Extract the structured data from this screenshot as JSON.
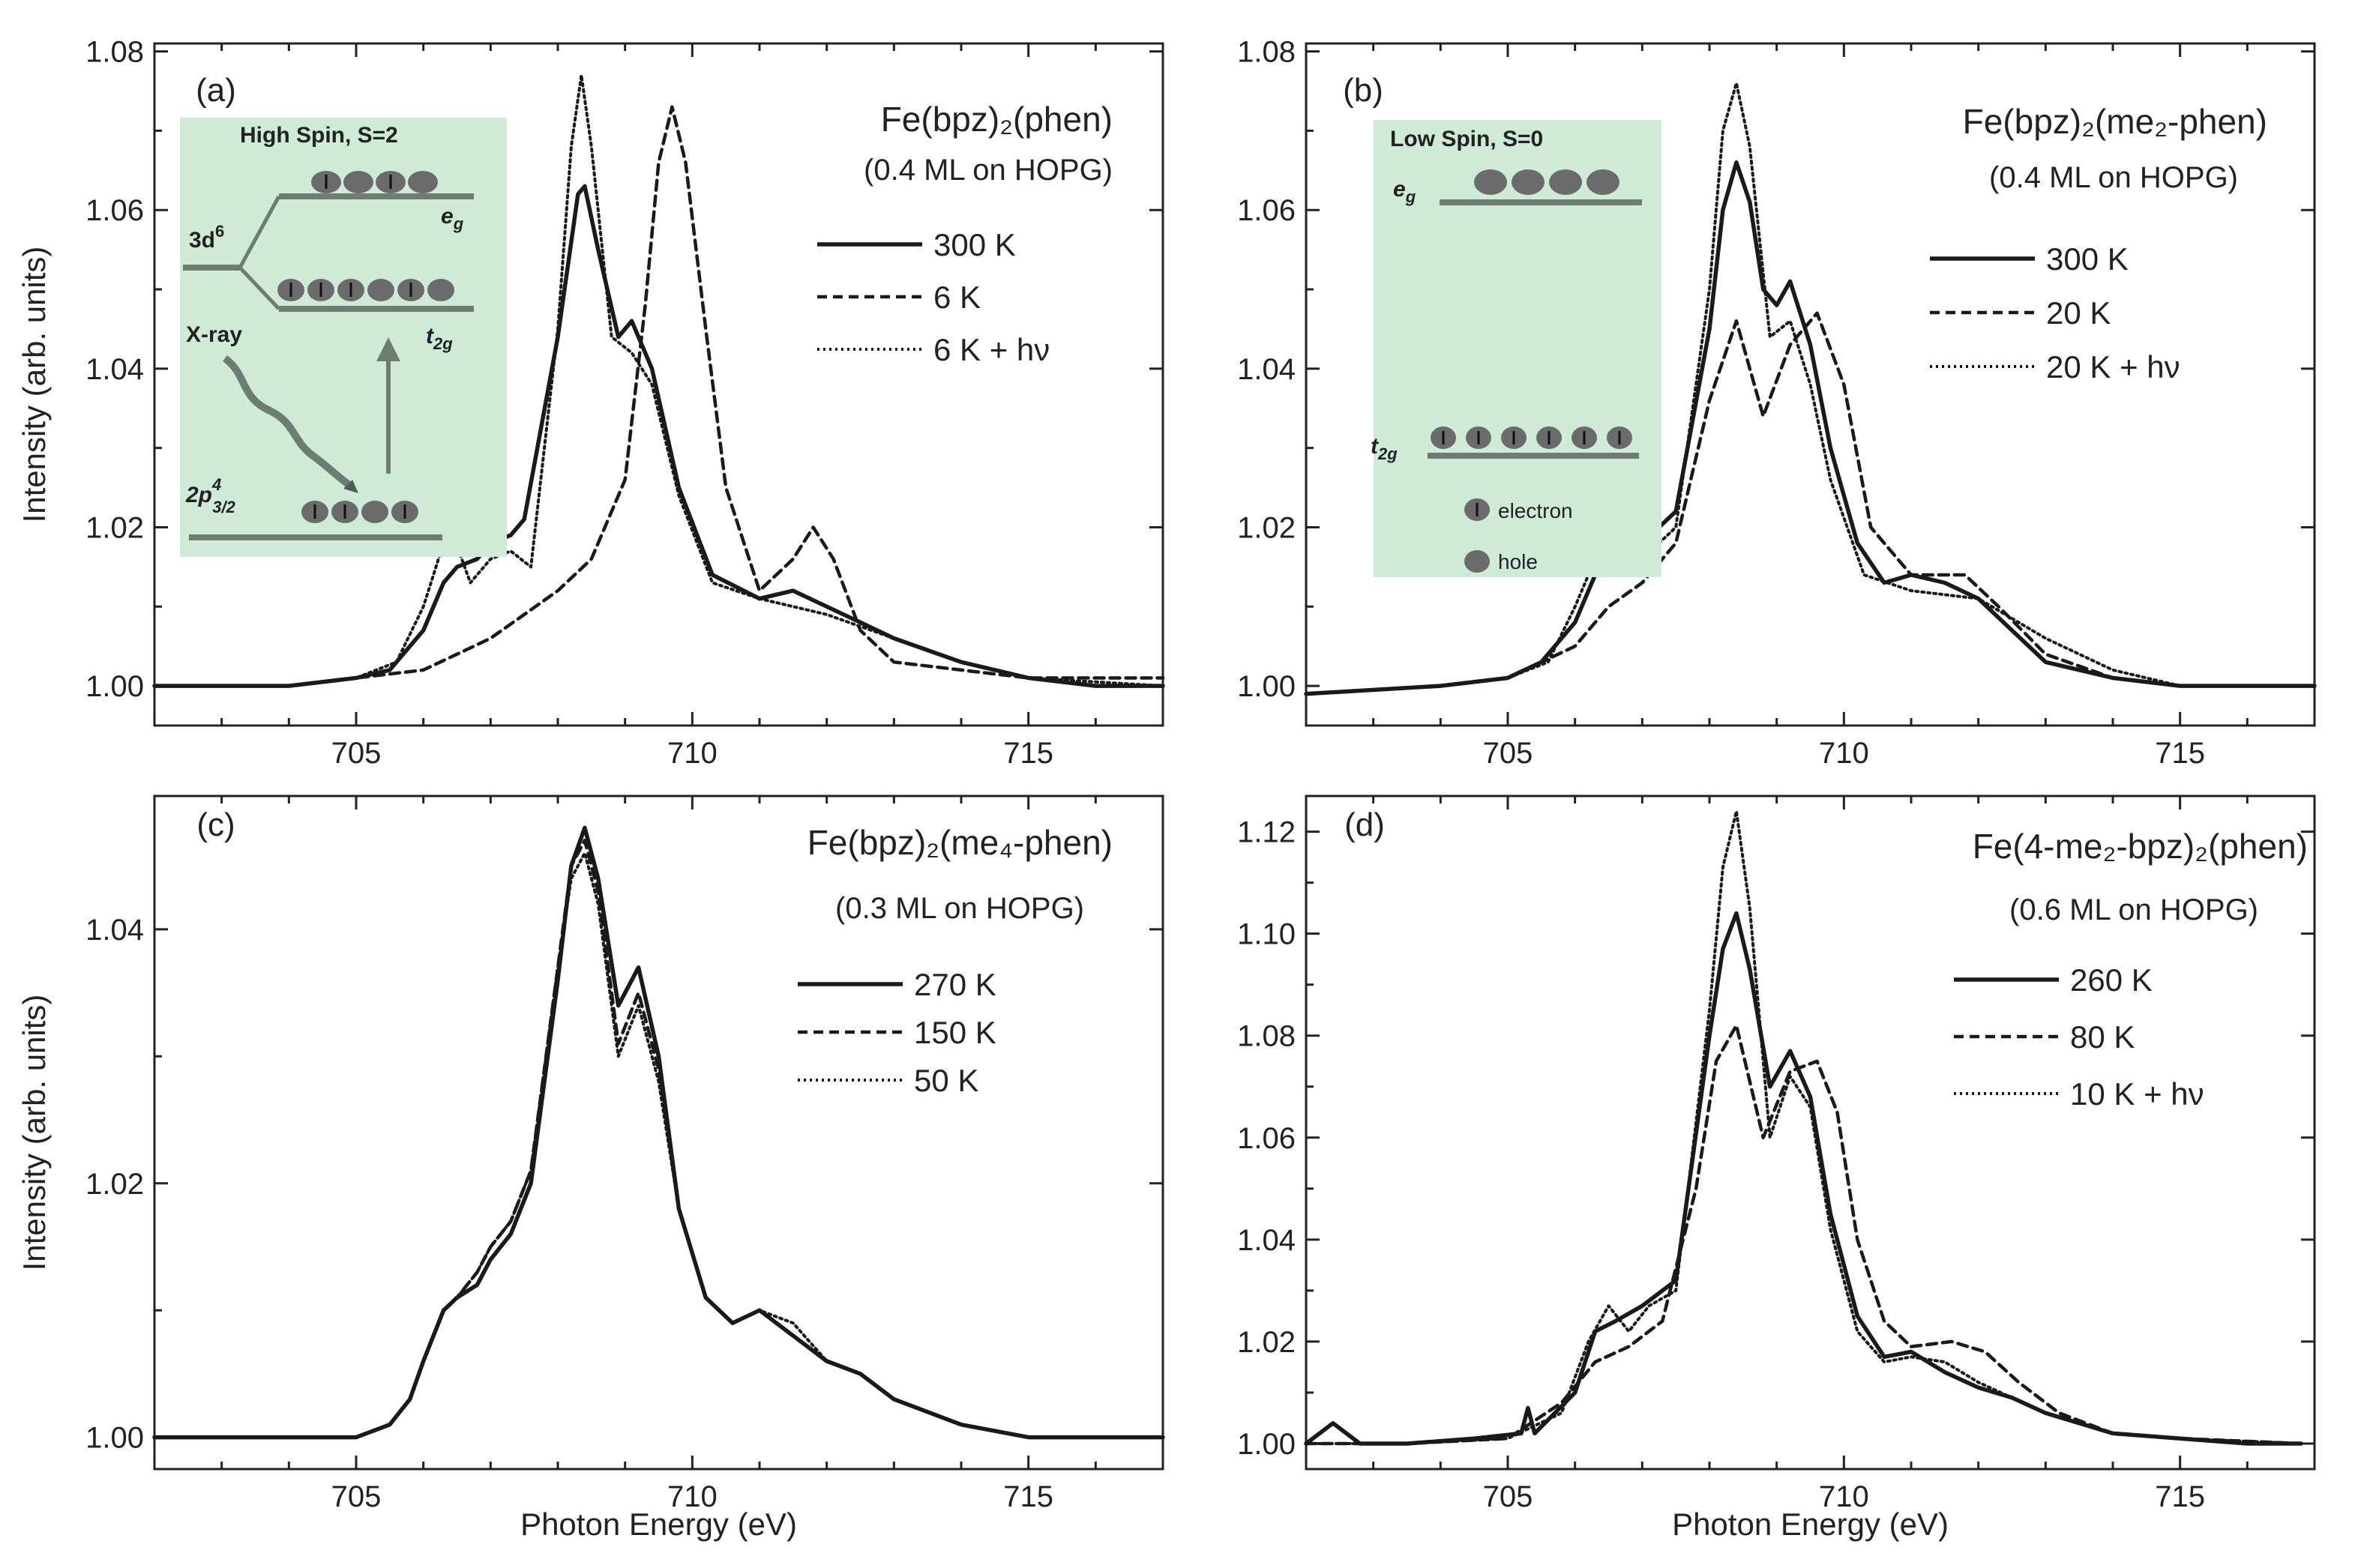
{
  "xlabel": "Photon Energy (eV)",
  "ylabel": "Intensity (arb. units)",
  "chart_data": [
    {
      "type": "line",
      "panel": "(a)",
      "title": "Fe(bpz)₂(phen)",
      "subtitle": "(0.4 ML on  HOPG)",
      "xlim": [
        702,
        717
      ],
      "ylim": [
        0.995,
        1.081
      ],
      "xticks": [
        705,
        710,
        715
      ],
      "yticks": [
        "1.00",
        "1.02",
        "1.04",
        "1.06",
        "1.08"
      ],
      "legend_position": "top-right",
      "series": [
        {
          "name": "300 K",
          "style": "solid",
          "x": [
            702,
            703,
            704,
            705,
            705.5,
            706,
            706.3,
            706.5,
            706.8,
            707,
            707.3,
            707.5,
            708,
            708.3,
            708.4,
            708.6,
            708.9,
            709.1,
            709.4,
            709.8,
            710.3,
            711,
            711.5,
            712,
            712.5,
            713,
            714,
            715,
            716,
            717
          ],
          "y": [
            1.0,
            1.0,
            1.0,
            1.001,
            1.002,
            1.007,
            1.013,
            1.015,
            1.016,
            1.018,
            1.019,
            1.021,
            1.044,
            1.062,
            1.063,
            1.055,
            1.044,
            1.046,
            1.04,
            1.025,
            1.014,
            1.011,
            1.012,
            1.01,
            1.008,
            1.006,
            1.003,
            1.001,
            1.0,
            1.0
          ]
        },
        {
          "name": "6 K",
          "style": "dashed",
          "x": [
            702,
            704,
            705,
            706,
            706.5,
            707,
            707.5,
            708,
            708.5,
            709,
            709.3,
            709.5,
            709.7,
            709.9,
            710.2,
            710.5,
            711,
            711.5,
            711.8,
            712.1,
            712.5,
            713,
            714,
            715,
            717
          ],
          "y": [
            1.0,
            1.0,
            1.001,
            1.002,
            1.004,
            1.006,
            1.009,
            1.012,
            1.016,
            1.026,
            1.048,
            1.066,
            1.073,
            1.066,
            1.045,
            1.025,
            1.012,
            1.016,
            1.02,
            1.016,
            1.007,
            1.003,
            1.002,
            1.001,
            1.001
          ]
        },
        {
          "name": "6 K + hν",
          "style": "dotted",
          "x": [
            702,
            704,
            705,
            705.6,
            706,
            706.3,
            706.4,
            706.7,
            707,
            707.3,
            707.6,
            708,
            708.2,
            708.35,
            708.5,
            708.8,
            709.1,
            709.4,
            709.8,
            710.3,
            711,
            712,
            713,
            714,
            715,
            717
          ],
          "y": [
            1.0,
            1.0,
            1.001,
            1.003,
            1.01,
            1.018,
            1.02,
            1.013,
            1.016,
            1.017,
            1.015,
            1.045,
            1.068,
            1.077,
            1.068,
            1.044,
            1.042,
            1.038,
            1.024,
            1.013,
            1.011,
            1.009,
            1.006,
            1.003,
            1.001,
            1.0
          ]
        }
      ]
    },
    {
      "type": "line",
      "panel": "(b)",
      "title": "Fe(bpz)₂(me₂-phen)",
      "subtitle": "(0.4 ML on HOPG)",
      "xlim": [
        702,
        717
      ],
      "ylim": [
        0.995,
        1.081
      ],
      "xticks": [
        705,
        710,
        715
      ],
      "yticks": [
        "1.00",
        "1.02",
        "1.04",
        "1.06",
        "1.08"
      ],
      "legend_position": "top-right",
      "series": [
        {
          "name": "300 K",
          "style": "solid",
          "x": [
            702,
            704,
            705,
            705.5,
            706,
            706.3,
            706.6,
            707,
            707.5,
            708,
            708.2,
            708.4,
            708.6,
            708.8,
            709,
            709.2,
            709.5,
            709.8,
            710.2,
            710.6,
            711,
            711.5,
            712,
            712.5,
            713,
            714,
            715,
            717
          ],
          "y": [
            0.999,
            1.0,
            1.001,
            1.003,
            1.008,
            1.014,
            1.016,
            1.018,
            1.022,
            1.045,
            1.06,
            1.066,
            1.061,
            1.05,
            1.048,
            1.051,
            1.043,
            1.03,
            1.018,
            1.013,
            1.014,
            1.013,
            1.011,
            1.007,
            1.003,
            1.001,
            1.0,
            1.0
          ]
        },
        {
          "name": "20 K",
          "style": "dashed",
          "x": [
            702,
            704,
            705,
            706,
            706.5,
            707,
            707.5,
            708,
            708.4,
            708.8,
            709.2,
            709.6,
            710,
            710.4,
            711,
            711.8,
            712.3,
            713,
            714,
            715,
            717
          ],
          "y": [
            0.999,
            1.0,
            1.001,
            1.005,
            1.01,
            1.013,
            1.018,
            1.036,
            1.046,
            1.034,
            1.043,
            1.047,
            1.038,
            1.02,
            1.014,
            1.014,
            1.01,
            1.004,
            1.001,
            1.0,
            1.0
          ]
        },
        {
          "name": "20 K + hν",
          "style": "dotted",
          "x": [
            702,
            704,
            705,
            705.6,
            706,
            706.3,
            706.6,
            707,
            707.5,
            708,
            708.2,
            708.4,
            708.6,
            708.9,
            709.2,
            709.5,
            709.8,
            710.3,
            711,
            712,
            713,
            714,
            715,
            717
          ],
          "y": [
            0.999,
            1.0,
            1.001,
            1.003,
            1.01,
            1.016,
            1.017,
            1.016,
            1.02,
            1.05,
            1.07,
            1.076,
            1.068,
            1.044,
            1.046,
            1.038,
            1.026,
            1.014,
            1.012,
            1.011,
            1.006,
            1.002,
            1.0,
            1.0
          ]
        }
      ]
    },
    {
      "type": "line",
      "panel": "(c)",
      "title": "Fe(bpz)₂(me₄-phen)",
      "subtitle": "(0.3 ML on HOPG)",
      "xlim": [
        702,
        717
      ],
      "ylim": [
        0.9975,
        1.0505
      ],
      "xticks": [
        705,
        710,
        715
      ],
      "yticks": [
        "1.00",
        "1.02",
        "1.04"
      ],
      "legend_position": "top-right",
      "series": [
        {
          "name": "270 K",
          "style": "solid",
          "x": [
            702,
            704,
            705,
            705.5,
            705.8,
            706,
            706.3,
            706.5,
            706.8,
            707,
            707.3,
            707.6,
            708,
            708.2,
            708.4,
            708.6,
            708.9,
            709.2,
            709.5,
            709.8,
            710.2,
            710.6,
            711,
            711.5,
            712,
            712.5,
            713,
            714,
            715,
            716,
            717
          ],
          "y": [
            1.0,
            1.0,
            1.0,
            1.001,
            1.003,
            1.006,
            1.01,
            1.011,
            1.012,
            1.014,
            1.016,
            1.02,
            1.036,
            1.045,
            1.048,
            1.044,
            1.034,
            1.037,
            1.03,
            1.018,
            1.011,
            1.009,
            1.01,
            1.008,
            1.006,
            1.005,
            1.003,
            1.001,
            1.0,
            1.0,
            1.0
          ]
        },
        {
          "name": "150 K",
          "style": "dashed",
          "x": [
            702,
            704,
            705,
            705.5,
            705.8,
            706,
            706.3,
            706.5,
            706.8,
            707,
            707.3,
            707.6,
            708,
            708.2,
            708.4,
            708.6,
            708.9,
            709.2,
            709.5,
            709.8,
            710.2,
            710.6,
            711,
            711.5,
            712,
            712.5,
            713,
            714,
            715,
            716,
            717
          ],
          "y": [
            1.0,
            1.0,
            1.0,
            1.001,
            1.003,
            1.006,
            1.01,
            1.011,
            1.013,
            1.015,
            1.017,
            1.021,
            1.037,
            1.045,
            1.047,
            1.043,
            1.031,
            1.035,
            1.029,
            1.018,
            1.011,
            1.009,
            1.01,
            1.008,
            1.006,
            1.005,
            1.003,
            1.001,
            1.0,
            1.0,
            1.0
          ]
        },
        {
          "name": "50 K",
          "style": "dotted",
          "x": [
            702,
            704,
            705,
            705.5,
            705.8,
            706,
            706.3,
            706.5,
            706.8,
            707,
            707.3,
            707.6,
            708,
            708.2,
            708.4,
            708.6,
            708.9,
            709.2,
            709.5,
            709.8,
            710.2,
            710.6,
            711,
            711.5,
            712,
            712.5,
            713,
            714,
            715,
            716,
            717
          ],
          "y": [
            1.0,
            1.0,
            1.0,
            1.001,
            1.003,
            1.006,
            1.01,
            1.011,
            1.013,
            1.015,
            1.017,
            1.021,
            1.037,
            1.044,
            1.046,
            1.042,
            1.03,
            1.034,
            1.028,
            1.018,
            1.011,
            1.009,
            1.01,
            1.009,
            1.006,
            1.005,
            1.003,
            1.001,
            1.0,
            1.0,
            1.0
          ]
        }
      ]
    },
    {
      "type": "line",
      "panel": "(d)",
      "title": "Fe(4-me₂-bpz)₂(phen)",
      "subtitle": "(0.6 ML on  HOPG)",
      "xlim": [
        702,
        717
      ],
      "ylim": [
        0.995,
        1.127
      ],
      "xticks": [
        705,
        710,
        715
      ],
      "yticks": [
        "1.00",
        "1.02",
        "1.04",
        "1.06",
        "1.08",
        "1.10",
        "1.12"
      ],
      "legend_position": "top-right",
      "series": [
        {
          "name": "260 K",
          "style": "solid",
          "x": [
            702,
            702.4,
            702.8,
            703.5,
            704.5,
            705.2,
            705.3,
            705.4,
            706,
            706.3,
            706.6,
            707,
            707.5,
            708,
            708.2,
            708.4,
            708.6,
            708.9,
            709.2,
            709.5,
            709.8,
            710.2,
            710.6,
            711,
            711.5,
            712,
            712.5,
            713,
            714,
            715,
            716,
            716.8
          ],
          "y": [
            1.0,
            1.004,
            1.0,
            1.0,
            1.001,
            1.002,
            1.007,
            1.002,
            1.01,
            1.022,
            1.024,
            1.027,
            1.032,
            1.08,
            1.097,
            1.104,
            1.093,
            1.07,
            1.077,
            1.068,
            1.045,
            1.025,
            1.017,
            1.018,
            1.014,
            1.011,
            1.009,
            1.006,
            1.002,
            1.001,
            1.0,
            1.0
          ]
        },
        {
          "name": "80 K",
          "style": "dashed",
          "x": [
            702,
            703.5,
            705,
            705.8,
            706.3,
            706.8,
            707.3,
            707.8,
            708.1,
            708.4,
            708.8,
            709.2,
            709.6,
            709.9,
            710.2,
            710.6,
            711,
            711.6,
            712.1,
            712.6,
            713.2,
            714,
            715,
            716.8
          ],
          "y": [
            1.0,
            1.0,
            1.001,
            1.008,
            1.016,
            1.019,
            1.024,
            1.05,
            1.075,
            1.082,
            1.06,
            1.073,
            1.075,
            1.065,
            1.04,
            1.024,
            1.019,
            1.02,
            1.018,
            1.012,
            1.006,
            1.002,
            1.001,
            1.0
          ]
        },
        {
          "name": "10 K + hν",
          "style": "dotted",
          "x": [
            702,
            703.5,
            705,
            705.8,
            706.2,
            706.5,
            706.8,
            707.1,
            707.5,
            708,
            708.2,
            708.4,
            708.6,
            708.9,
            709.2,
            709.5,
            709.8,
            710.2,
            710.6,
            711,
            711.5,
            712,
            712.5,
            713,
            714,
            715,
            716.8
          ],
          "y": [
            1.0,
            1.0,
            1.001,
            1.006,
            1.02,
            1.027,
            1.022,
            1.027,
            1.03,
            1.085,
            1.113,
            1.124,
            1.105,
            1.06,
            1.072,
            1.066,
            1.042,
            1.022,
            1.016,
            1.017,
            1.016,
            1.012,
            1.009,
            1.006,
            1.002,
            1.001,
            1.0
          ]
        }
      ]
    }
  ],
  "insets": {
    "a": {
      "title": "High Spin, S=2",
      "level_d": "3d",
      "level_d_sup": "6",
      "eg": "e",
      "eg_sub": "g",
      "t2g": "t",
      "t2g_sub": "2g",
      "xray": "X-ray",
      "p_main": "2p",
      "p_sup": "4",
      "p_sub": "3/2"
    },
    "b": {
      "title": "Low Spin, S=0",
      "eg": "e",
      "eg_sub": "g",
      "t2g": "t",
      "t2g_sub": "2g",
      "electron_label": "electron",
      "hole_label": "hole"
    }
  },
  "colors": {
    "inset_bg": "#cfead6",
    "level": "#6e7d72",
    "circle": "#6b6b6b",
    "line": "#1a1a1a"
  }
}
